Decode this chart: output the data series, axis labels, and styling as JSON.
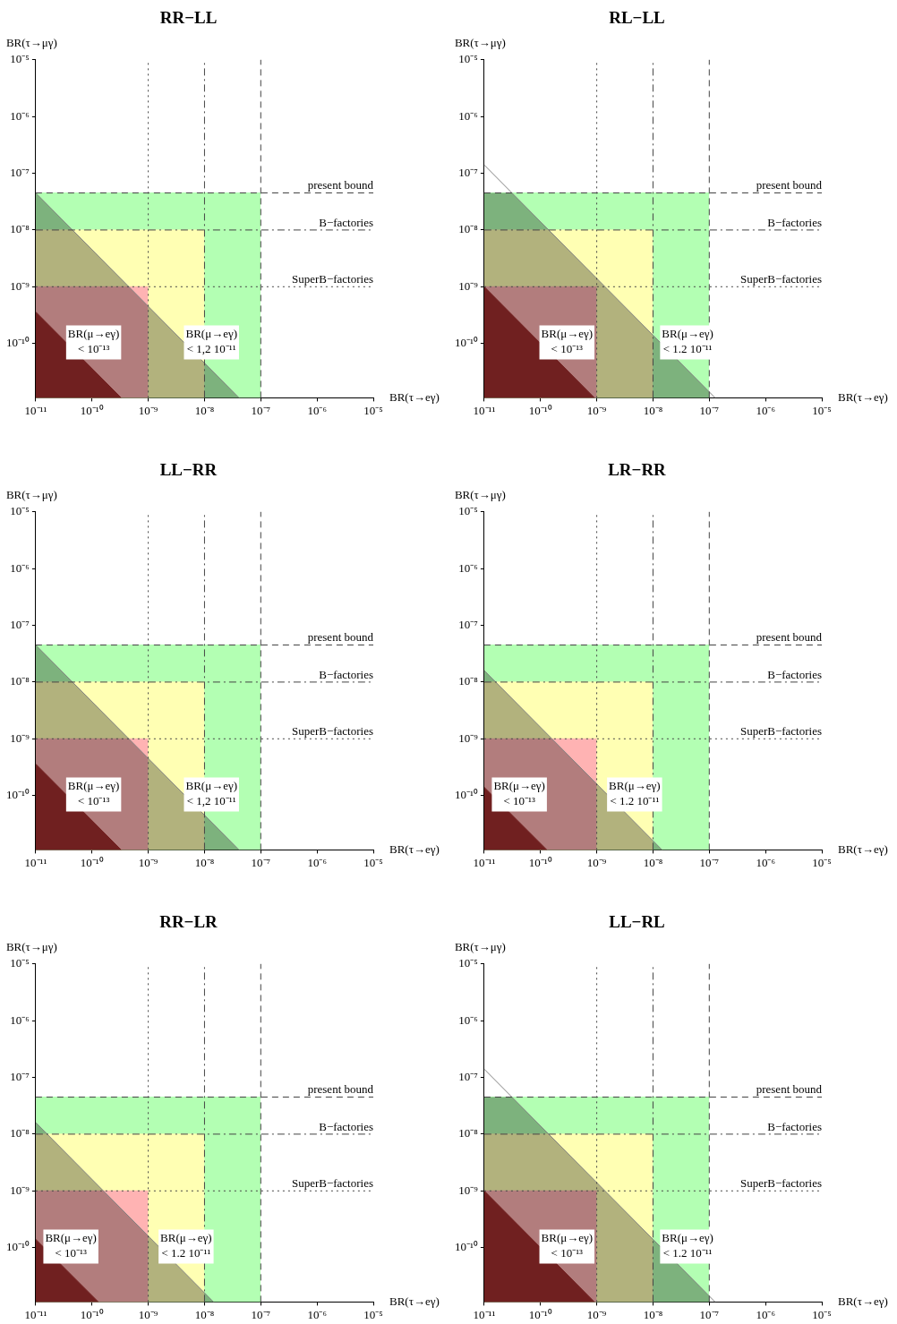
{
  "chart_data": [
    {
      "type": "area",
      "title": "RR−LL",
      "xlabel": "BR(τ→eγ)",
      "ylabel": "BR(τ→μγ)",
      "log": "xy",
      "grid": false,
      "legend": false,
      "xlim": [
        1e-11,
        1e-05
      ],
      "ylim": [
        1.1e-11,
        1e-05
      ],
      "xticks": [
        {
          "value": 1e-11,
          "label": "10⁻¹¹"
        },
        {
          "value": 1e-10,
          "label": "10⁻¹⁰"
        },
        {
          "value": 1e-09,
          "label": "10⁻⁹"
        },
        {
          "value": 1e-08,
          "label": "10⁻⁸"
        },
        {
          "value": 1e-07,
          "label": "10⁻⁷"
        },
        {
          "value": 1e-06,
          "label": "10⁻⁶"
        },
        {
          "value": 1e-05,
          "label": "10⁻⁵"
        }
      ],
      "yticks": [
        {
          "value": 1e-10,
          "label": "10⁻¹⁰"
        },
        {
          "value": 1e-09,
          "label": "10⁻⁹"
        },
        {
          "value": 1e-08,
          "label": "10⁻⁸"
        },
        {
          "value": 1e-07,
          "label": "10⁻⁷"
        },
        {
          "value": 1e-06,
          "label": "10⁻⁶"
        },
        {
          "value": 1e-05,
          "label": "10⁻⁵"
        }
      ],
      "series": [
        {
          "type": "area",
          "color": "#b3ffb3",
          "x": [
            1e-11,
            1e-07
          ],
          "values": [
            4.5e-08,
            4.5e-08
          ]
        },
        {
          "type": "area",
          "color": "#ffffb3",
          "x": [
            1e-11,
            1e-08
          ],
          "values": [
            1e-08,
            1e-08
          ]
        },
        {
          "type": "area",
          "color": "#ffb3b3",
          "x": [
            1e-11,
            1e-09
          ],
          "values": [
            1e-09,
            1e-09
          ]
        },
        {
          "type": "line",
          "color": "#808080",
          "x": [
            1e-11,
            4.1e-08
          ],
          "values": [
            4.5e-08,
            1.1e-11
          ]
        },
        {
          "type": "area",
          "color": "#702020",
          "x": [
            1e-11,
            3.3e-10
          ],
          "values": [
            3.6e-10,
            1.1e-11
          ]
        }
      ],
      "ref_lines": [
        {
          "axis": "x",
          "value": 1e-09,
          "line_style": "dotted"
        },
        {
          "axis": "x",
          "value": 1e-08,
          "line_style": "dashdot"
        },
        {
          "axis": "x",
          "value": 1e-07,
          "line_style": "dashed"
        },
        {
          "axis": "y",
          "value": 4.5e-08,
          "label": "present bound",
          "line_style": "dashed"
        },
        {
          "axis": "y",
          "value": 1e-08,
          "label": "B−factories",
          "line_style": "dashdot"
        },
        {
          "axis": "y",
          "value": 1e-09,
          "label": "SuperB−factories",
          "line_style": "dotted"
        }
      ],
      "annotations": [
        "BR(μ→eγ)\n< 10⁻¹³",
        "BR(μ→eγ)\n< 1,2 10⁻¹¹"
      ]
    },
    {
      "type": "area",
      "title": "RL−LL",
      "xlabel": "BR(τ→eγ)",
      "ylabel": "BR(τ→μγ)",
      "log": "xy",
      "grid": false,
      "legend": false,
      "xlim": [
        1e-11,
        1e-05
      ],
      "ylim": [
        1.1e-11,
        1e-05
      ],
      "xticks": [
        {
          "value": 1e-11,
          "label": "10⁻¹¹"
        },
        {
          "value": 1e-10,
          "label": "10⁻¹⁰"
        },
        {
          "value": 1e-09,
          "label": "10⁻⁹"
        },
        {
          "value": 1e-08,
          "label": "10⁻⁸"
        },
        {
          "value": 1e-07,
          "label": "10⁻⁷"
        },
        {
          "value": 1e-06,
          "label": "10⁻⁶"
        },
        {
          "value": 1e-05,
          "label": "10⁻⁵"
        }
      ],
      "yticks": [
        {
          "value": 1e-10,
          "label": "10⁻¹⁰"
        },
        {
          "value": 1e-09,
          "label": "10⁻⁹"
        },
        {
          "value": 1e-08,
          "label": "10⁻⁸"
        },
        {
          "value": 1e-07,
          "label": "10⁻⁷"
        },
        {
          "value": 1e-06,
          "label": "10⁻⁶"
        },
        {
          "value": 1e-05,
          "label": "10⁻⁵"
        }
      ],
      "series": [
        {
          "type": "area",
          "color": "#b3ffb3",
          "x": [
            1e-11,
            1e-07
          ],
          "values": [
            4.5e-08,
            4.5e-08
          ]
        },
        {
          "type": "area",
          "color": "#ffffb3",
          "x": [
            1e-11,
            1e-08
          ],
          "values": [
            1e-08,
            1e-08
          ]
        },
        {
          "type": "area",
          "color": "#ffb3b3",
          "x": [
            1e-11,
            1e-09
          ],
          "values": [
            1e-09,
            1e-09
          ]
        },
        {
          "type": "line",
          "color": "#808080",
          "x": [
            1e-11,
            1.27e-07
          ],
          "values": [
            1.4e-07,
            1.1e-11
          ]
        },
        {
          "type": "area",
          "color": "#702020",
          "x": [
            1e-11,
            9.1e-10
          ],
          "values": [
            1e-09,
            1.1e-11
          ]
        }
      ],
      "ref_lines": [
        {
          "axis": "x",
          "value": 1e-09,
          "line_style": "dotted"
        },
        {
          "axis": "x",
          "value": 1e-08,
          "line_style": "dashdot"
        },
        {
          "axis": "x",
          "value": 1e-07,
          "line_style": "dashed"
        },
        {
          "axis": "y",
          "value": 4.5e-08,
          "label": "present bound",
          "line_style": "dashed"
        },
        {
          "axis": "y",
          "value": 1e-08,
          "label": "B−factories",
          "line_style": "dashdot"
        },
        {
          "axis": "y",
          "value": 1e-09,
          "label": "SuperB−factories",
          "line_style": "dotted"
        }
      ],
      "annotations": [
        "BR(μ→eγ)\n< 10⁻¹³",
        "BR(μ→eγ)\n< 1.2 10⁻¹¹"
      ]
    },
    {
      "type": "area",
      "title": "LL−RR",
      "xlabel": "BR(τ→eγ)",
      "ylabel": "BR(τ→μγ)",
      "log": "xy",
      "grid": false,
      "legend": false,
      "xlim": [
        1e-11,
        1e-05
      ],
      "ylim": [
        1.1e-11,
        1e-05
      ],
      "xticks": [
        {
          "value": 1e-11,
          "label": "10⁻¹¹"
        },
        {
          "value": 1e-10,
          "label": "10⁻¹⁰"
        },
        {
          "value": 1e-09,
          "label": "10⁻⁹"
        },
        {
          "value": 1e-08,
          "label": "10⁻⁸"
        },
        {
          "value": 1e-07,
          "label": "10⁻⁷"
        },
        {
          "value": 1e-06,
          "label": "10⁻⁶"
        },
        {
          "value": 1e-05,
          "label": "10⁻⁵"
        }
      ],
      "yticks": [
        {
          "value": 1e-10,
          "label": "10⁻¹⁰"
        },
        {
          "value": 1e-09,
          "label": "10⁻⁹"
        },
        {
          "value": 1e-08,
          "label": "10⁻⁸"
        },
        {
          "value": 1e-07,
          "label": "10⁻⁷"
        },
        {
          "value": 1e-06,
          "label": "10⁻⁶"
        },
        {
          "value": 1e-05,
          "label": "10⁻⁵"
        }
      ],
      "series": [
        {
          "type": "area",
          "color": "#b3ffb3",
          "x": [
            1e-11,
            1e-07
          ],
          "values": [
            4.5e-08,
            4.5e-08
          ]
        },
        {
          "type": "area",
          "color": "#ffffb3",
          "x": [
            1e-11,
            1e-08
          ],
          "values": [
            1e-08,
            1e-08
          ]
        },
        {
          "type": "area",
          "color": "#ffb3b3",
          "x": [
            1e-11,
            1e-09
          ],
          "values": [
            1e-09,
            1e-09
          ]
        },
        {
          "type": "line",
          "color": "#808080",
          "x": [
            1e-11,
            4.1e-08
          ],
          "values": [
            4.5e-08,
            1.1e-11
          ]
        },
        {
          "type": "area",
          "color": "#702020",
          "x": [
            1e-11,
            3.3e-10
          ],
          "values": [
            3.6e-10,
            1.1e-11
          ]
        }
      ],
      "ref_lines": [
        {
          "axis": "x",
          "value": 1e-09,
          "line_style": "dotted"
        },
        {
          "axis": "x",
          "value": 1e-08,
          "line_style": "dashdot"
        },
        {
          "axis": "x",
          "value": 1e-07,
          "line_style": "dashed"
        },
        {
          "axis": "y",
          "value": 4.5e-08,
          "label": "present bound",
          "line_style": "dashed"
        },
        {
          "axis": "y",
          "value": 1e-08,
          "label": "B−factories",
          "line_style": "dashdot"
        },
        {
          "axis": "y",
          "value": 1e-09,
          "label": "SuperB−factories",
          "line_style": "dotted"
        }
      ],
      "annotations": [
        "BR(μ→eγ)\n< 10⁻¹³",
        "BR(μ→eγ)\n< 1,2 10⁻¹¹"
      ]
    },
    {
      "type": "area",
      "title": "LR−RR",
      "xlabel": "BR(τ→eγ)",
      "ylabel": "BR(τ→μγ)",
      "log": "xy",
      "grid": false,
      "legend": false,
      "xlim": [
        1e-11,
        1e-05
      ],
      "ylim": [
        1.1e-11,
        1e-05
      ],
      "xticks": [
        {
          "value": 1e-11,
          "label": "10⁻¹¹"
        },
        {
          "value": 1e-10,
          "label": "10⁻¹⁰"
        },
        {
          "value": 1e-09,
          "label": "10⁻⁹"
        },
        {
          "value": 1e-08,
          "label": "10⁻⁸"
        },
        {
          "value": 1e-07,
          "label": "10⁻⁷"
        },
        {
          "value": 1e-06,
          "label": "10⁻⁶"
        },
        {
          "value": 1e-05,
          "label": "10⁻⁵"
        }
      ],
      "yticks": [
        {
          "value": 1e-10,
          "label": "10⁻¹⁰"
        },
        {
          "value": 1e-09,
          "label": "10⁻⁹"
        },
        {
          "value": 1e-08,
          "label": "10⁻⁸"
        },
        {
          "value": 1e-07,
          "label": "10⁻⁷"
        },
        {
          "value": 1e-06,
          "label": "10⁻⁶"
        },
        {
          "value": 1e-05,
          "label": "10⁻⁵"
        }
      ],
      "series": [
        {
          "type": "area",
          "color": "#b3ffb3",
          "x": [
            1e-11,
            1e-07
          ],
          "values": [
            4.5e-08,
            4.5e-08
          ]
        },
        {
          "type": "area",
          "color": "#ffffb3",
          "x": [
            1e-11,
            1e-08
          ],
          "values": [
            1e-08,
            1e-08
          ]
        },
        {
          "type": "area",
          "color": "#ffb3b3",
          "x": [
            1e-11,
            1e-09
          ],
          "values": [
            1e-09,
            1e-09
          ]
        },
        {
          "type": "line",
          "color": "#808080",
          "x": [
            1e-11,
            1.45e-08
          ],
          "values": [
            1.6e-08,
            1.1e-11
          ]
        },
        {
          "type": "area",
          "color": "#702020",
          "x": [
            1e-11,
            1.3e-10
          ],
          "values": [
            1.4e-10,
            1.1e-11
          ]
        }
      ],
      "ref_lines": [
        {
          "axis": "x",
          "value": 1e-09,
          "line_style": "dotted"
        },
        {
          "axis": "x",
          "value": 1e-08,
          "line_style": "dashdot"
        },
        {
          "axis": "x",
          "value": 1e-07,
          "line_style": "dashed"
        },
        {
          "axis": "y",
          "value": 4.5e-08,
          "label": "present bound",
          "line_style": "dashed"
        },
        {
          "axis": "y",
          "value": 1e-08,
          "label": "B−factories",
          "line_style": "dashdot"
        },
        {
          "axis": "y",
          "value": 1e-09,
          "label": "SuperB−factories",
          "line_style": "dotted"
        }
      ],
      "annotations": [
        "BR(μ→eγ)\n< 10⁻¹³",
        "BR(μ→eγ)\n< 1.2 10⁻¹¹"
      ]
    },
    {
      "type": "area",
      "title": "RR−LR",
      "xlabel": "BR(τ→eγ)",
      "ylabel": "BR(τ→μγ)",
      "log": "xy",
      "grid": false,
      "legend": false,
      "xlim": [
        1e-11,
        1e-05
      ],
      "ylim": [
        1.1e-11,
        1e-05
      ],
      "xticks": [
        {
          "value": 1e-11,
          "label": "10⁻¹¹"
        },
        {
          "value": 1e-10,
          "label": "10⁻¹⁰"
        },
        {
          "value": 1e-09,
          "label": "10⁻⁹"
        },
        {
          "value": 1e-08,
          "label": "10⁻⁸"
        },
        {
          "value": 1e-07,
          "label": "10⁻⁷"
        },
        {
          "value": 1e-06,
          "label": "10⁻⁶"
        },
        {
          "value": 1e-05,
          "label": "10⁻⁵"
        }
      ],
      "yticks": [
        {
          "value": 1e-10,
          "label": "10⁻¹⁰"
        },
        {
          "value": 1e-09,
          "label": "10⁻⁹"
        },
        {
          "value": 1e-08,
          "label": "10⁻⁸"
        },
        {
          "value": 1e-07,
          "label": "10⁻⁷"
        },
        {
          "value": 1e-06,
          "label": "10⁻⁶"
        },
        {
          "value": 1e-05,
          "label": "10⁻⁵"
        }
      ],
      "series": [
        {
          "type": "area",
          "color": "#b3ffb3",
          "x": [
            1e-11,
            1e-07
          ],
          "values": [
            4.5e-08,
            4.5e-08
          ]
        },
        {
          "type": "area",
          "color": "#ffffb3",
          "x": [
            1e-11,
            1e-08
          ],
          "values": [
            1e-08,
            1e-08
          ]
        },
        {
          "type": "area",
          "color": "#ffb3b3",
          "x": [
            1e-11,
            1e-09
          ],
          "values": [
            1e-09,
            1e-09
          ]
        },
        {
          "type": "line",
          "color": "#808080",
          "x": [
            1e-11,
            1.45e-08
          ],
          "values": [
            1.6e-08,
            1.1e-11
          ]
        },
        {
          "type": "area",
          "color": "#702020",
          "x": [
            1e-11,
            1.3e-10
          ],
          "values": [
            1.4e-10,
            1.1e-11
          ]
        }
      ],
      "ref_lines": [
        {
          "axis": "x",
          "value": 1e-09,
          "line_style": "dotted"
        },
        {
          "axis": "x",
          "value": 1e-08,
          "line_style": "dashdot"
        },
        {
          "axis": "x",
          "value": 1e-07,
          "line_style": "dashed"
        },
        {
          "axis": "y",
          "value": 4.5e-08,
          "label": "present bound",
          "line_style": "dashed"
        },
        {
          "axis": "y",
          "value": 1e-08,
          "label": "B−factories",
          "line_style": "dashdot"
        },
        {
          "axis": "y",
          "value": 1e-09,
          "label": "SuperB−factories",
          "line_style": "dotted"
        }
      ],
      "annotations": [
        "BR(μ→eγ)\n< 10⁻¹³",
        "BR(μ→eγ)\n< 1.2 10⁻¹¹"
      ]
    },
    {
      "type": "area",
      "title": "LL−RL",
      "xlabel": "BR(τ→eγ)",
      "ylabel": "BR(τ→μγ)",
      "log": "xy",
      "grid": false,
      "legend": false,
      "xlim": [
        1e-11,
        1e-05
      ],
      "ylim": [
        1.1e-11,
        1e-05
      ],
      "xticks": [
        {
          "value": 1e-11,
          "label": "10⁻¹¹"
        },
        {
          "value": 1e-10,
          "label": "10⁻¹⁰"
        },
        {
          "value": 1e-09,
          "label": "10⁻⁹"
        },
        {
          "value": 1e-08,
          "label": "10⁻⁸"
        },
        {
          "value": 1e-07,
          "label": "10⁻⁷"
        },
        {
          "value": 1e-06,
          "label": "10⁻⁶"
        },
        {
          "value": 1e-05,
          "label": "10⁻⁵"
        }
      ],
      "yticks": [
        {
          "value": 1e-10,
          "label": "10⁻¹⁰"
        },
        {
          "value": 1e-09,
          "label": "10⁻⁹"
        },
        {
          "value": 1e-08,
          "label": "10⁻⁸"
        },
        {
          "value": 1e-07,
          "label": "10⁻⁷"
        },
        {
          "value": 1e-06,
          "label": "10⁻⁶"
        },
        {
          "value": 1e-05,
          "label": "10⁻⁵"
        }
      ],
      "series": [
        {
          "type": "area",
          "color": "#b3ffb3",
          "x": [
            1e-11,
            1e-07
          ],
          "values": [
            4.5e-08,
            4.5e-08
          ]
        },
        {
          "type": "area",
          "color": "#ffffb3",
          "x": [
            1e-11,
            1e-08
          ],
          "values": [
            1e-08,
            1e-08
          ]
        },
        {
          "type": "area",
          "color": "#ffb3b3",
          "x": [
            1e-11,
            1e-09
          ],
          "values": [
            1e-09,
            1e-09
          ]
        },
        {
          "type": "line",
          "color": "#808080",
          "x": [
            1e-11,
            1.27e-07
          ],
          "values": [
            1.4e-07,
            1.1e-11
          ]
        },
        {
          "type": "area",
          "color": "#702020",
          "x": [
            1e-11,
            9.1e-10
          ],
          "values": [
            1e-09,
            1.1e-11
          ]
        }
      ],
      "ref_lines": [
        {
          "axis": "x",
          "value": 1e-09,
          "line_style": "dotted"
        },
        {
          "axis": "x",
          "value": 1e-08,
          "line_style": "dashdot"
        },
        {
          "axis": "x",
          "value": 1e-07,
          "line_style": "dashed"
        },
        {
          "axis": "y",
          "value": 4.5e-08,
          "label": "present bound",
          "line_style": "dashed"
        },
        {
          "axis": "y",
          "value": 1e-08,
          "label": "B−factories",
          "line_style": "dashdot"
        },
        {
          "axis": "y",
          "value": 1e-09,
          "label": "SuperB−factories",
          "line_style": "dotted"
        }
      ],
      "annotations": [
        "BR(μ→eγ)\n< 10⁻¹³",
        "BR(μ→eγ)\n< 1.2 10⁻¹¹"
      ]
    }
  ]
}
